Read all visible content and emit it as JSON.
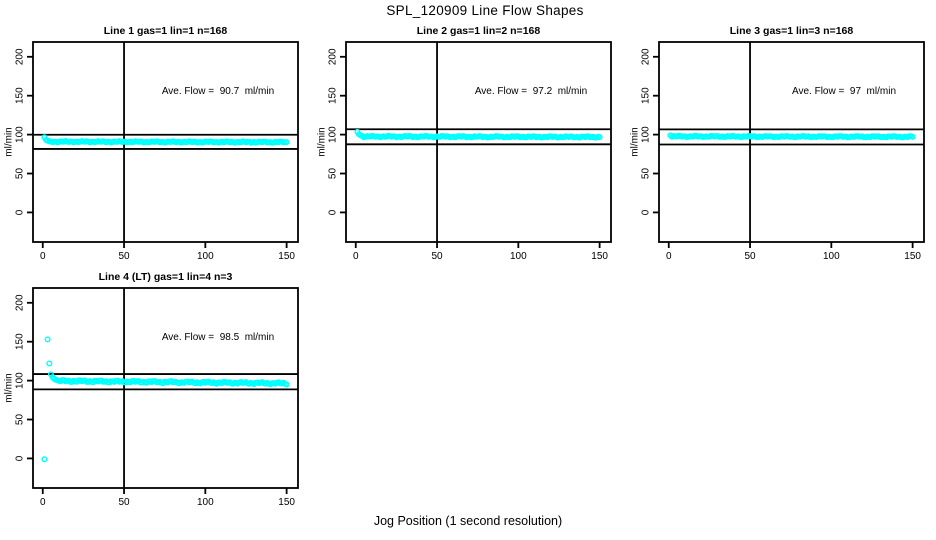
{
  "page": {
    "main_title": "SPL_120909  Line Flow Shapes",
    "x_axis_label": "Jog Position (1 second resolution)"
  },
  "colors": {
    "points": "#00ffff",
    "axis": "#000000",
    "text": "#000000",
    "background": "#ffffff"
  },
  "axes": {
    "ylabel": "ml/min",
    "xticks": [
      0,
      50,
      100,
      150
    ],
    "yticks": [
      0,
      50,
      100,
      150,
      200
    ],
    "xlim": [
      -6,
      157
    ],
    "ylim": [
      -38,
      219
    ],
    "grid": false,
    "legend": "none"
  },
  "chart_data": [
    {
      "type": "scatter",
      "title": "Line 1 gas=1 lin=1 n=168",
      "annotation": "Ave. Flow =  90.7  ml/min",
      "ave_flow_ml_min": 90.7,
      "n": 168,
      "marker": "open-circle",
      "vline_x": 50,
      "hlines_y": [
        99.8,
        81.6
      ],
      "transient_points": [
        [
          1,
          96.5
        ],
        [
          2,
          93.5
        ],
        [
          3,
          92
        ]
      ],
      "steady_band": {
        "x_start": 4,
        "x_end": 150,
        "y_start": 90.9,
        "y_end": 90.3,
        "noise": 0.9
      }
    },
    {
      "type": "scatter",
      "title": "Line 2 gas=1 lin=2 n=168",
      "annotation": "Ave. Flow =  97.2  ml/min",
      "ave_flow_ml_min": 97.2,
      "n": 168,
      "marker": "open-circle",
      "vline_x": 50,
      "hlines_y": [
        106.9,
        87.5
      ],
      "transient_points": [
        [
          1,
          103.5
        ],
        [
          2,
          100.5
        ],
        [
          3,
          99
        ],
        [
          4,
          98.2
        ]
      ],
      "steady_band": {
        "x_start": 5,
        "x_end": 150,
        "y_start": 97.6,
        "y_end": 96.9,
        "noise": 1.0
      }
    },
    {
      "type": "scatter",
      "title": "Line 3 gas=1 lin=3 n=168",
      "annotation": "Ave. Flow =  97  ml/min",
      "ave_flow_ml_min": 97,
      "n": 168,
      "marker": "open-circle",
      "vline_x": 50,
      "hlines_y": [
        106.7,
        87.3
      ],
      "transient_points": [
        [
          1,
          99
        ]
      ],
      "steady_band": {
        "x_start": 2,
        "x_end": 150,
        "y_start": 97.7,
        "y_end": 97.2,
        "noise": 0.9
      }
    },
    {
      "type": "scatter",
      "title": "Line 4 (LT) gas=1 lin=4 n=3",
      "annotation": "Ave. Flow =  98.5  ml/min",
      "ave_flow_ml_min": 98.5,
      "n": 3,
      "marker": "open-circle",
      "vline_x": 50,
      "hlines_y": [
        108.4,
        88.7
      ],
      "transient_points": [
        [
          1,
          -1
        ],
        [
          3,
          153
        ],
        [
          4,
          122
        ],
        [
          5,
          108
        ],
        [
          6,
          104.5
        ],
        [
          7,
          102.5
        ],
        [
          8,
          101.2
        ],
        [
          9,
          100.4
        ]
      ],
      "steady_band": {
        "x_start": 10,
        "x_end": 150,
        "y_start": 99.6,
        "y_end": 96.4,
        "noise": 1.5
      }
    }
  ]
}
